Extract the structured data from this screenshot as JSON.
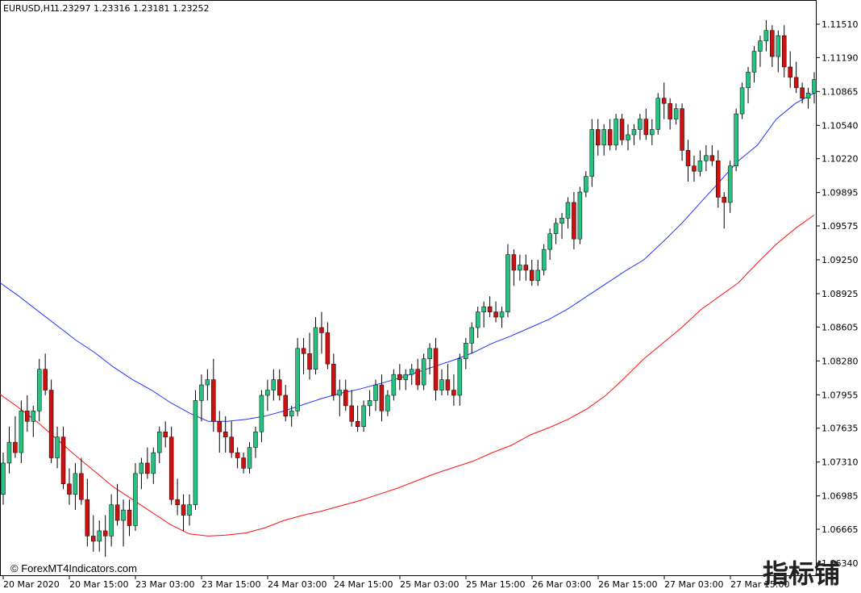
{
  "header": {
    "symbol": "EURUSD,H1",
    "ohlc": "1.23297 1.23316 1.23181 1.23252"
  },
  "watermark": {
    "copyright": "© ForexMT4Indicators.com",
    "cjk": "指标铺"
  },
  "colors": {
    "bull": "#26c281",
    "bear": "#cc1111",
    "fast_ma": "#2233ff",
    "slow_ma": "#ff1111",
    "frame": "#000000"
  },
  "chart_data": {
    "type": "candlestick",
    "title": "EURUSD,H1",
    "y_ticks": [
      "1.11510",
      "1.11190",
      "1.10865",
      "1.10540",
      "1.10220",
      "1.09895",
      "1.09575",
      "1.09250",
      "1.08925",
      "1.08605",
      "1.08280",
      "1.07955",
      "1.07635",
      "1.07310",
      "1.06985",
      "1.06665",
      "1.06340"
    ],
    "ylim": [
      1.0634,
      1.1151
    ],
    "x_ticks": [
      "20 Mar 2020",
      "20 Mar 15:00",
      "23 Mar 03:00",
      "23 Mar 15:00",
      "24 Mar 03:00",
      "24 Mar 15:00",
      "25 Mar 03:00",
      "25 Mar 15:00",
      "26 Mar 03:00",
      "26 Mar 15:00",
      "27 Mar 03:00",
      "27 Mar 15:00"
    ],
    "candles": [
      [
        1.07,
        1.074,
        1.069,
        1.073
      ],
      [
        1.073,
        1.0765,
        1.072,
        1.075
      ],
      [
        1.075,
        1.0775,
        1.0735,
        1.074
      ],
      [
        1.074,
        1.079,
        1.073,
        1.078
      ],
      [
        1.078,
        1.0795,
        1.076,
        1.077
      ],
      [
        1.077,
        1.0785,
        1.0755,
        1.078
      ],
      [
        1.078,
        1.083,
        1.077,
        1.082
      ],
      [
        1.082,
        1.0835,
        1.0795,
        1.08
      ],
      [
        1.08,
        1.081,
        1.073,
        1.0735
      ],
      [
        1.0735,
        1.0765,
        1.0725,
        1.0755
      ],
      [
        1.0755,
        1.0765,
        1.0705,
        1.071
      ],
      [
        1.071,
        1.0725,
        1.069,
        1.07
      ],
      [
        1.07,
        1.073,
        1.0685,
        1.072
      ],
      [
        1.072,
        1.0735,
        1.069,
        1.0695
      ],
      [
        1.0695,
        1.0715,
        1.065,
        1.066
      ],
      [
        1.066,
        1.068,
        1.0645,
        1.0655
      ],
      [
        1.0655,
        1.0675,
        1.0645,
        1.0665
      ],
      [
        1.0665,
        1.068,
        1.064,
        1.066
      ],
      [
        1.066,
        1.07,
        1.065,
        1.069
      ],
      [
        1.069,
        1.071,
        1.067,
        1.0675
      ],
      [
        1.0675,
        1.0695,
        1.065,
        1.0685
      ],
      [
        1.0685,
        1.0695,
        1.066,
        1.067
      ],
      [
        1.067,
        1.073,
        1.0665,
        1.072
      ],
      [
        1.072,
        1.0735,
        1.0705,
        1.073
      ],
      [
        1.073,
        1.0745,
        1.0715,
        1.072
      ],
      [
        1.072,
        1.0745,
        1.071,
        1.074
      ],
      [
        1.074,
        1.0765,
        1.073,
        1.076
      ],
      [
        1.076,
        1.077,
        1.0745,
        1.0755
      ],
      [
        1.0755,
        1.0765,
        1.069,
        1.0695
      ],
      [
        1.0695,
        1.0715,
        1.068,
        1.069
      ],
      [
        1.069,
        1.07,
        1.0665,
        1.068
      ],
      [
        1.068,
        1.07,
        1.067,
        1.069
      ],
      [
        1.069,
        1.08,
        1.0685,
        1.079
      ],
      [
        1.079,
        1.0815,
        1.077,
        1.0805
      ],
      [
        1.0805,
        1.082,
        1.079,
        1.081
      ],
      [
        1.081,
        1.083,
        1.076,
        1.077
      ],
      [
        1.077,
        1.078,
        1.074,
        1.076
      ],
      [
        1.076,
        1.0775,
        1.074,
        1.0755
      ],
      [
        1.0755,
        1.077,
        1.0735,
        1.074
      ],
      [
        1.074,
        1.0745,
        1.0725,
        1.0735
      ],
      [
        1.0735,
        1.074,
        1.072,
        1.0725
      ],
      [
        1.0725,
        1.075,
        1.072,
        1.0745
      ],
      [
        1.0745,
        1.0765,
        1.0735,
        1.076
      ],
      [
        1.076,
        1.08,
        1.075,
        1.0795
      ],
      [
        1.0795,
        1.081,
        1.078,
        1.08
      ],
      [
        1.08,
        1.082,
        1.079,
        1.081
      ],
      [
        1.081,
        1.082,
        1.079,
        1.0795
      ],
      [
        1.0795,
        1.0805,
        1.077,
        1.0775
      ],
      [
        1.0775,
        1.0785,
        1.0765,
        1.078
      ],
      [
        1.078,
        1.085,
        1.0775,
        1.084
      ],
      [
        1.084,
        1.085,
        1.0815,
        1.0835
      ],
      [
        1.0835,
        1.0855,
        1.081,
        1.082
      ],
      [
        1.082,
        1.087,
        1.0815,
        1.086
      ],
      [
        1.086,
        1.0875,
        1.0835,
        1.0855
      ],
      [
        1.0855,
        1.0865,
        1.082,
        1.0825
      ],
      [
        1.0825,
        1.0835,
        1.079,
        1.0795
      ],
      [
        1.0795,
        1.081,
        1.0775,
        1.08
      ],
      [
        1.08,
        1.081,
        1.078,
        1.0785
      ],
      [
        1.0785,
        1.08,
        1.0765,
        1.077
      ],
      [
        1.077,
        1.0785,
        1.076,
        1.0765
      ],
      [
        1.0765,
        1.079,
        1.076,
        1.0785
      ],
      [
        1.0785,
        1.08,
        1.0775,
        1.079
      ],
      [
        1.079,
        1.081,
        1.078,
        1.0805
      ],
      [
        1.0805,
        1.0815,
        1.077,
        1.078
      ],
      [
        1.078,
        1.08,
        1.0775,
        1.0795
      ],
      [
        1.0795,
        1.082,
        1.079,
        1.0815
      ],
      [
        1.0815,
        1.0825,
        1.08,
        1.081
      ],
      [
        1.081,
        1.082,
        1.08,
        1.0815
      ],
      [
        1.0815,
        1.0825,
        1.0805,
        1.082
      ],
      [
        1.082,
        1.083,
        1.08,
        1.0805
      ],
      [
        1.0805,
        1.0835,
        1.08,
        1.083
      ],
      [
        1.083,
        1.0845,
        1.0815,
        1.084
      ],
      [
        1.084,
        1.085,
        1.079,
        1.08
      ],
      [
        1.08,
        1.082,
        1.0795,
        1.081
      ],
      [
        1.081,
        1.0825,
        1.0795,
        1.08
      ],
      [
        1.08,
        1.0815,
        1.0785,
        1.0795
      ],
      [
        1.0795,
        1.0835,
        1.0785,
        1.083
      ],
      [
        1.083,
        1.085,
        1.082,
        1.0845
      ],
      [
        1.0845,
        1.0865,
        1.0835,
        1.086
      ],
      [
        1.086,
        1.088,
        1.085,
        1.0875
      ],
      [
        1.0875,
        1.0885,
        1.086,
        1.088
      ],
      [
        1.088,
        1.089,
        1.087,
        1.0875
      ],
      [
        1.0875,
        1.0885,
        1.0865,
        1.087
      ],
      [
        1.087,
        1.088,
        1.086,
        1.0875
      ],
      [
        1.0875,
        1.094,
        1.087,
        1.093
      ],
      [
        1.093,
        1.0935,
        1.09,
        1.0915
      ],
      [
        1.0915,
        1.093,
        1.0905,
        1.092
      ],
      [
        1.092,
        1.093,
        1.0905,
        1.0915
      ],
      [
        1.0915,
        1.0925,
        1.09,
        1.0905
      ],
      [
        1.0905,
        1.0925,
        1.09,
        1.0915
      ],
      [
        1.0915,
        1.094,
        1.091,
        1.0935
      ],
      [
        1.0935,
        1.0955,
        1.0925,
        1.095
      ],
      [
        1.095,
        1.0965,
        1.094,
        1.096
      ],
      [
        1.096,
        1.097,
        1.0945,
        1.0965
      ],
      [
        1.0965,
        1.0985,
        1.0955,
        1.098
      ],
      [
        1.098,
        1.099,
        1.0935,
        1.0945
      ],
      [
        1.0945,
        1.0995,
        1.094,
        1.099
      ],
      [
        1.099,
        1.101,
        1.0985,
        1.1005
      ],
      [
        1.1005,
        1.106,
        1.0995,
        1.105
      ],
      [
        1.105,
        1.106,
        1.1025,
        1.1035
      ],
      [
        1.1035,
        1.1055,
        1.1025,
        1.105
      ],
      [
        1.105,
        1.106,
        1.103,
        1.1035
      ],
      [
        1.1035,
        1.1065,
        1.103,
        1.106
      ],
      [
        1.106,
        1.1065,
        1.1035,
        1.104
      ],
      [
        1.104,
        1.1055,
        1.103,
        1.1045
      ],
      [
        1.1045,
        1.1055,
        1.1035,
        1.105
      ],
      [
        1.105,
        1.1065,
        1.104,
        1.106
      ],
      [
        1.106,
        1.107,
        1.104,
        1.1045
      ],
      [
        1.1045,
        1.106,
        1.1035,
        1.105
      ],
      [
        1.105,
        1.1085,
        1.1045,
        1.108
      ],
      [
        1.108,
        1.1095,
        1.106,
        1.1075
      ],
      [
        1.1075,
        1.108,
        1.105,
        1.106
      ],
      [
        1.106,
        1.1075,
        1.1055,
        1.107
      ],
      [
        1.107,
        1.1075,
        1.102,
        1.103
      ],
      [
        1.103,
        1.104,
        1.1,
        1.1015
      ],
      [
        1.1015,
        1.1025,
        1.1,
        1.101
      ],
      [
        1.101,
        1.103,
        1.1005,
        1.102
      ],
      [
        1.102,
        1.1035,
        1.101,
        1.1025
      ],
      [
        1.1025,
        1.1035,
        1.1015,
        1.102
      ],
      [
        1.102,
        1.103,
        1.0975,
        1.0985
      ],
      [
        1.0985,
        1.099,
        1.0955,
        1.098
      ],
      [
        1.098,
        1.102,
        1.097,
        1.1015
      ],
      [
        1.1015,
        1.107,
        1.101,
        1.1065
      ],
      [
        1.1065,
        1.1095,
        1.106,
        1.109
      ],
      [
        1.109,
        1.111,
        1.1075,
        1.1105
      ],
      [
        1.1105,
        1.113,
        1.1095,
        1.1125
      ],
      [
        1.1125,
        1.114,
        1.111,
        1.1135
      ],
      [
        1.1135,
        1.1155,
        1.1125,
        1.1145
      ],
      [
        1.1145,
        1.115,
        1.111,
        1.112
      ],
      [
        1.112,
        1.1145,
        1.1105,
        1.114
      ],
      [
        1.114,
        1.115,
        1.11,
        1.111
      ],
      [
        1.111,
        1.1125,
        1.109,
        1.11
      ],
      [
        1.11,
        1.1115,
        1.1085,
        1.109
      ],
      [
        1.109,
        1.1095,
        1.1075,
        1.108
      ],
      [
        1.108,
        1.109,
        1.107,
        1.1085
      ],
      [
        1.1085,
        1.1105,
        1.1075,
        1.1098
      ]
    ],
    "series": [
      {
        "values": [
          1.0903,
          1.089,
          1.0876,
          1.0862,
          1.0848,
          1.0836,
          1.0822,
          1.081,
          1.08,
          1.0788,
          1.0778,
          1.077,
          1.077,
          1.0772,
          1.0775,
          1.078,
          1.0786,
          1.0792,
          1.0797,
          1.0801,
          1.0806,
          1.0811,
          1.0817,
          1.0823,
          1.0829,
          1.0836,
          1.0845,
          1.0852,
          1.086,
          1.0868,
          1.0878,
          1.089,
          1.0902,
          1.0914,
          1.0925,
          1.0942,
          1.096,
          1.098,
          1.1,
          1.102,
          1.1035,
          1.106,
          1.1075,
          1.1085
        ]
      },
      {
        "values": [
          1.0796,
          1.0783,
          1.0769,
          1.0753,
          1.0737,
          1.0722,
          1.0707,
          1.0695,
          1.0683,
          1.0671,
          1.0662,
          1.066,
          1.0661,
          1.0663,
          1.0668,
          1.0675,
          1.068,
          1.0684,
          1.0689,
          1.0694,
          1.07,
          1.0706,
          1.0713,
          1.072,
          1.0726,
          1.0732,
          1.074,
          1.0747,
          1.0757,
          1.0764,
          1.0772,
          1.0782,
          1.0795,
          1.0812,
          1.083,
          1.0845,
          1.086,
          1.0877,
          1.089,
          1.0903,
          1.0922,
          1.094,
          1.0955,
          1.0968
        ]
      }
    ]
  }
}
